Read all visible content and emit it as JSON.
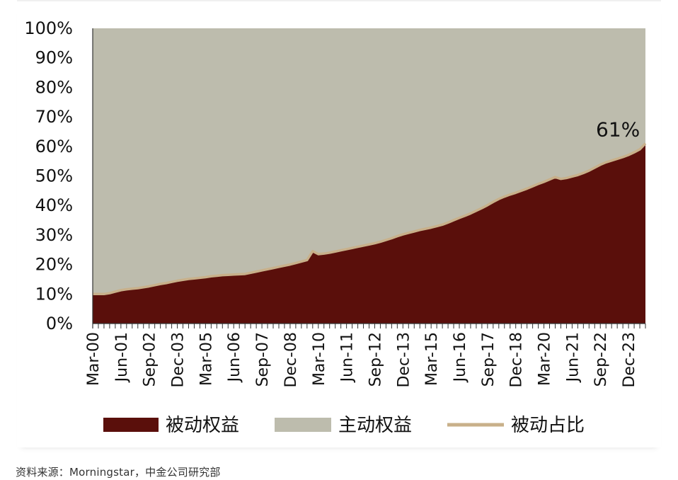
{
  "colors": {
    "passive": "#5a0f0b",
    "active": "#bdbcad",
    "share_line": "#c8b08a"
  },
  "source_note": "资料来源：Morningstar，中金公司研究部",
  "chart_data": {
    "type": "area",
    "title": "",
    "xlabel": "",
    "ylabel": "",
    "ylim": [
      0,
      100
    ],
    "y_ticks": [
      "0%",
      "10%",
      "20%",
      "30%",
      "40%",
      "50%",
      "60%",
      "70%",
      "80%",
      "90%",
      "100%"
    ],
    "x_start": "Mar-00",
    "x_end": "Jun-24",
    "quarters": 98,
    "x_tick_labels": [
      "Mar-00",
      "Jun-01",
      "Sep-02",
      "Dec-03",
      "Mar-05",
      "Jun-06",
      "Sep-07",
      "Dec-08",
      "Mar-10",
      "Jun-11",
      "Sep-12",
      "Dec-13",
      "Mar-15",
      "Jun-16",
      "Sep-17",
      "Dec-18",
      "Mar-20",
      "Jun-21",
      "Sep-22",
      "Dec-23"
    ],
    "legend": [
      "被动权益",
      "主动权益",
      "被动占比"
    ],
    "annotation": "61%",
    "series": [
      {
        "name": "被动权益",
        "kind": "area",
        "values": [
          10,
          10,
          10,
          10.3,
          10.8,
          11.3,
          11.6,
          11.8,
          12,
          12.3,
          12.6,
          13,
          13.4,
          13.7,
          14.1,
          14.5,
          14.8,
          15.1,
          15.3,
          15.5,
          15.7,
          16,
          16.2,
          16.4,
          16.5,
          16.6,
          16.7,
          16.8,
          17.2,
          17.6,
          18,
          18.4,
          18.8,
          19.2,
          19.6,
          20,
          20.5,
          21,
          21.5,
          24.5,
          23.5,
          23.7,
          24,
          24.4,
          24.8,
          25.2,
          25.6,
          26,
          26.4,
          26.8,
          27.2,
          27.7,
          28.3,
          28.9,
          29.6,
          30.2,
          30.7,
          31.2,
          31.7,
          32.1,
          32.5,
          33,
          33.5,
          34.2,
          35,
          35.8,
          36.5,
          37.3,
          38.2,
          39.1,
          40.1,
          41.2,
          42.2,
          43,
          43.7,
          44.3,
          45,
          45.7,
          46.5,
          47.3,
          48,
          48.8,
          49.6,
          49,
          49.3,
          49.8,
          50.3,
          51,
          51.8,
          52.8,
          53.8,
          54.6,
          55.2,
          55.8,
          56.4,
          57.1,
          58,
          59,
          61
        ]
      },
      {
        "name": "主动权益",
        "kind": "area",
        "values": [
          90,
          90,
          90,
          89.7,
          89.2,
          88.7,
          88.4,
          88.2,
          88,
          87.7,
          87.4,
          87,
          86.6,
          86.3,
          85.9,
          85.5,
          85.2,
          84.9,
          84.7,
          84.5,
          84.3,
          84,
          83.8,
          83.6,
          83.5,
          83.4,
          83.3,
          83.2,
          82.8,
          82.4,
          82,
          81.6,
          81.2,
          80.8,
          80.4,
          80,
          79.5,
          79,
          78.5,
          75.5,
          76.5,
          76.3,
          76,
          75.6,
          75.2,
          74.8,
          74.4,
          74,
          73.6,
          73.2,
          72.8,
          72.3,
          71.7,
          71.1,
          70.4,
          69.8,
          69.3,
          68.8,
          68.3,
          67.9,
          67.5,
          67,
          66.5,
          65.8,
          65,
          64.2,
          63.5,
          62.7,
          61.8,
          60.9,
          59.9,
          58.8,
          57.8,
          57,
          56.3,
          55.7,
          55,
          54.3,
          53.5,
          52.7,
          52,
          51.2,
          50.4,
          51,
          50.7,
          50.2,
          49.7,
          49,
          48.2,
          47.2,
          46.2,
          45.4,
          44.8,
          44.2,
          43.6,
          42.9,
          42,
          41,
          39
        ]
      },
      {
        "name": "被动占比",
        "kind": "line",
        "values": [
          10,
          10,
          10,
          10.3,
          10.8,
          11.3,
          11.6,
          11.8,
          12,
          12.3,
          12.6,
          13,
          13.4,
          13.7,
          14.1,
          14.5,
          14.8,
          15.1,
          15.3,
          15.5,
          15.7,
          16,
          16.2,
          16.4,
          16.5,
          16.6,
          16.7,
          16.8,
          17.2,
          17.6,
          18,
          18.4,
          18.8,
          19.2,
          19.6,
          20,
          20.5,
          21,
          21.5,
          24.5,
          23.5,
          23.7,
          24,
          24.4,
          24.8,
          25.2,
          25.6,
          26,
          26.4,
          26.8,
          27.2,
          27.7,
          28.3,
          28.9,
          29.6,
          30.2,
          30.7,
          31.2,
          31.7,
          32.1,
          32.5,
          33,
          33.5,
          34.2,
          35,
          35.8,
          36.5,
          37.3,
          38.2,
          39.1,
          40.1,
          41.2,
          42.2,
          43,
          43.7,
          44.3,
          45,
          45.7,
          46.5,
          47.3,
          48,
          48.8,
          49.6,
          49,
          49.3,
          49.8,
          50.3,
          51,
          51.8,
          52.8,
          53.8,
          54.6,
          55.2,
          55.8,
          56.4,
          57.1,
          58,
          59,
          61
        ]
      }
    ]
  }
}
